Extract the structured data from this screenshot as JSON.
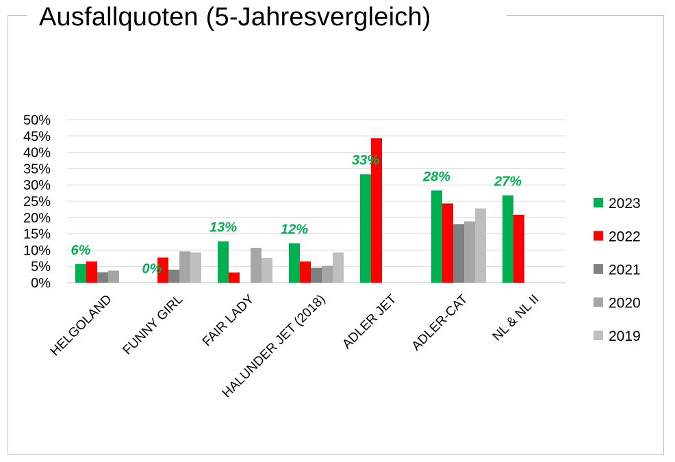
{
  "title": "Ausfallquoten (5-Jahresvergleich)",
  "chart_data": {
    "type": "bar",
    "title": "Ausfallquoten (5-Jahresvergleich)",
    "categories": [
      "HELGOLAND",
      "FUNNY GIRL",
      "FAIR LADY",
      "HALUNDER JET (2018)",
      "ADLER JET",
      "ADLER-CAT",
      "NL & NL II"
    ],
    "series": [
      {
        "name": "2023",
        "color": "#00b050",
        "values": [
          0.057,
          0.0,
          0.127,
          0.121,
          0.333,
          0.283,
          0.268
        ]
      },
      {
        "name": "2022",
        "color": "#ff0000",
        "values": [
          0.065,
          0.077,
          0.031,
          0.065,
          0.443,
          0.243,
          0.208
        ]
      },
      {
        "name": "2021",
        "color": "#808080",
        "values": [
          0.032,
          0.04,
          null,
          0.046,
          null,
          0.18,
          null
        ]
      },
      {
        "name": "2020",
        "color": "#a6a6a6",
        "values": [
          0.037,
          0.096,
          0.107,
          0.052,
          null,
          0.188,
          null
        ]
      },
      {
        "name": "2019",
        "color": "#bfbfbf",
        "values": [
          null,
          0.093,
          0.076,
          0.093,
          null,
          0.228,
          null
        ]
      }
    ],
    "data_labels": [
      "6%",
      "0%",
      "13%",
      "12%",
      "33%",
      "28%",
      "27%"
    ],
    "data_label_color": "#00b050",
    "y_ticks": [
      "0%",
      "5%",
      "10%",
      "15%",
      "20%",
      "25%",
      "30%",
      "35%",
      "40%",
      "45%",
      "50%"
    ],
    "ylim": [
      0,
      0.5
    ],
    "grid": true,
    "legend_position": "right"
  }
}
